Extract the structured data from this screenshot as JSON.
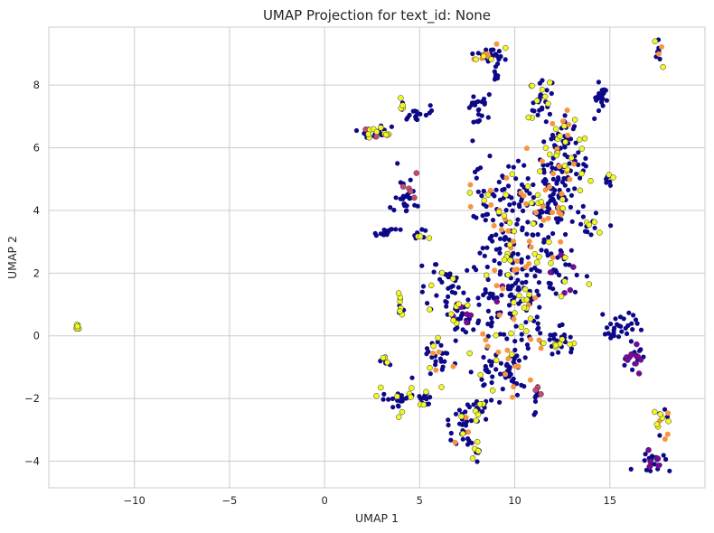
{
  "chart_data": {
    "type": "scatter",
    "title": "UMAP Projection for text_id: None",
    "xlabel": "UMAP 1",
    "ylabel": "UMAP 2",
    "xlim": [
      -14.5,
      20
    ],
    "ylim": [
      -4.85,
      9.85
    ],
    "xticks": [
      -10,
      -5,
      0,
      5,
      10,
      15
    ],
    "yticks": [
      -4,
      -2,
      0,
      2,
      4,
      6,
      8
    ],
    "grid": true,
    "legend": "none",
    "colors": {
      "navy": "#0d0887",
      "purple": "#7e03a8",
      "magenta": "#cc4778",
      "orange": "#f89540",
      "yellow": "#f0f921"
    },
    "clusters": [
      {
        "x": -13,
        "y": 0.28,
        "sx": 0.05,
        "sy": 0.04,
        "n": 6,
        "colors": {
          "yellow": 1
        }
      },
      {
        "x": 8.6,
        "y": 8.95,
        "sx": 0.45,
        "sy": 0.12,
        "n": 30,
        "colors": {
          "navy": 0.7,
          "orange": 0.15,
          "yellow": 0.15
        }
      },
      {
        "x": 9.1,
        "y": 8.6,
        "sx": 0.2,
        "sy": 0.3,
        "n": 10,
        "colors": {
          "navy": 1
        }
      },
      {
        "x": 17.6,
        "y": 9.0,
        "sx": 0.12,
        "sy": 0.2,
        "n": 12,
        "colors": {
          "navy": 0.5,
          "orange": 0.3,
          "yellow": 0.2
        }
      },
      {
        "x": 11.3,
        "y": 7.6,
        "sx": 0.3,
        "sy": 0.3,
        "n": 30,
        "colors": {
          "navy": 0.5,
          "yellow": 0.5
        }
      },
      {
        "x": 14.6,
        "y": 7.7,
        "sx": 0.2,
        "sy": 0.25,
        "n": 18,
        "colors": {
          "navy": 1
        }
      },
      {
        "x": 8.0,
        "y": 7.2,
        "sx": 0.35,
        "sy": 0.3,
        "n": 22,
        "colors": {
          "navy": 1
        }
      },
      {
        "x": 5.0,
        "y": 7.05,
        "sx": 0.4,
        "sy": 0.15,
        "n": 14,
        "colors": {
          "navy": 1
        }
      },
      {
        "x": 2.8,
        "y": 6.5,
        "sx": 0.45,
        "sy": 0.12,
        "n": 30,
        "colors": {
          "navy": 0.6,
          "magenta": 0.2,
          "yellow": 0.2
        }
      },
      {
        "x": 4.0,
        "y": 7.2,
        "sx": 0.2,
        "sy": 0.2,
        "n": 8,
        "colors": {
          "navy": 0.6,
          "yellow": 0.4
        }
      },
      {
        "x": 12.5,
        "y": 5.5,
        "sx": 0.6,
        "sy": 0.7,
        "n": 90,
        "colors": {
          "navy": 0.7,
          "yellow": 0.2,
          "orange": 0.1
        }
      },
      {
        "x": 12.7,
        "y": 6.5,
        "sx": 0.3,
        "sy": 0.3,
        "n": 15,
        "colors": {
          "navy": 0.6,
          "orange": 0.2,
          "yellow": 0.2
        }
      },
      {
        "x": 15.0,
        "y": 5.0,
        "sx": 0.15,
        "sy": 0.15,
        "n": 8,
        "colors": {
          "navy": 0.6,
          "yellow": 0.4
        }
      },
      {
        "x": 11.8,
        "y": 4.3,
        "sx": 1.0,
        "sy": 0.7,
        "n": 95,
        "colors": {
          "navy": 0.8,
          "yellow": 0.1,
          "orange": 0.1
        }
      },
      {
        "x": 9.5,
        "y": 3.8,
        "sx": 1.0,
        "sy": 0.8,
        "n": 110,
        "colors": {
          "navy": 0.8,
          "yellow": 0.1,
          "orange": 0.1
        }
      },
      {
        "x": 4.2,
        "y": 4.5,
        "sx": 0.25,
        "sy": 0.35,
        "n": 30,
        "colors": {
          "navy": 0.85,
          "magenta": 0.15
        }
      },
      {
        "x": 3.3,
        "y": 3.3,
        "sx": 0.3,
        "sy": 0.1,
        "n": 14,
        "colors": {
          "navy": 1
        }
      },
      {
        "x": 5.1,
        "y": 3.15,
        "sx": 0.2,
        "sy": 0.12,
        "n": 10,
        "colors": {
          "navy": 0.6,
          "yellow": 0.4
        }
      },
      {
        "x": 14.1,
        "y": 3.5,
        "sx": 0.3,
        "sy": 0.25,
        "n": 12,
        "colors": {
          "navy": 0.7,
          "yellow": 0.3
        }
      },
      {
        "x": 10.2,
        "y": 1.6,
        "sx": 1.0,
        "sy": 0.8,
        "n": 130,
        "colors": {
          "navy": 0.72,
          "yellow": 0.12,
          "orange": 0.12,
          "purple": 0.04
        }
      },
      {
        "x": 12.6,
        "y": 2.0,
        "sx": 0.5,
        "sy": 0.5,
        "n": 30,
        "colors": {
          "navy": 0.7,
          "purple": 0.15,
          "yellow": 0.15
        }
      },
      {
        "x": 6.3,
        "y": 1.5,
        "sx": 0.7,
        "sy": 0.5,
        "n": 40,
        "colors": {
          "navy": 0.8,
          "yellow": 0.2
        }
      },
      {
        "x": 7.4,
        "y": 0.6,
        "sx": 0.5,
        "sy": 0.35,
        "n": 40,
        "colors": {
          "navy": 0.65,
          "purple": 0.15,
          "yellow": 0.2
        }
      },
      {
        "x": 4.0,
        "y": 0.9,
        "sx": 0.1,
        "sy": 0.25,
        "n": 14,
        "colors": {
          "navy": 0.5,
          "yellow": 0.5
        }
      },
      {
        "x": 12.2,
        "y": -0.1,
        "sx": 0.5,
        "sy": 0.3,
        "n": 30,
        "colors": {
          "navy": 0.8,
          "yellow": 0.2
        }
      },
      {
        "x": 10.0,
        "y": -0.3,
        "sx": 0.8,
        "sy": 0.5,
        "n": 40,
        "colors": {
          "navy": 0.75,
          "orange": 0.15,
          "yellow": 0.1
        }
      },
      {
        "x": 15.5,
        "y": 0.3,
        "sx": 0.5,
        "sy": 0.3,
        "n": 30,
        "colors": {
          "navy": 1
        }
      },
      {
        "x": 16.3,
        "y": -0.7,
        "sx": 0.25,
        "sy": 0.25,
        "n": 20,
        "colors": {
          "navy": 0.6,
          "purple": 0.4
        }
      },
      {
        "x": 6.1,
        "y": -0.8,
        "sx": 0.4,
        "sy": 0.3,
        "n": 30,
        "colors": {
          "navy": 0.7,
          "yellow": 0.2,
          "orange": 0.1
        }
      },
      {
        "x": 8.6,
        "y": -1.0,
        "sx": 0.4,
        "sy": 0.35,
        "n": 25,
        "colors": {
          "navy": 0.75,
          "yellow": 0.25
        }
      },
      {
        "x": 9.8,
        "y": -1.2,
        "sx": 0.3,
        "sy": 0.5,
        "n": 25,
        "colors": {
          "navy": 0.7,
          "yellow": 0.15,
          "orange": 0.15
        }
      },
      {
        "x": 3.2,
        "y": -0.8,
        "sx": 0.15,
        "sy": 0.1,
        "n": 8,
        "colors": {
          "navy": 0.5,
          "yellow": 0.5
        }
      },
      {
        "x": 11.2,
        "y": -2.0,
        "sx": 0.1,
        "sy": 0.3,
        "n": 12,
        "colors": {
          "navy": 0.75,
          "magenta": 0.25
        }
      },
      {
        "x": 4.0,
        "y": -2.0,
        "sx": 0.5,
        "sy": 0.2,
        "n": 25,
        "colors": {
          "navy": 0.75,
          "yellow": 0.25
        }
      },
      {
        "x": 5.3,
        "y": -2.0,
        "sx": 0.3,
        "sy": 0.2,
        "n": 15,
        "colors": {
          "navy": 0.65,
          "yellow": 0.35
        }
      },
      {
        "x": 7.3,
        "y": -2.8,
        "sx": 0.35,
        "sy": 0.4,
        "n": 30,
        "colors": {
          "navy": 0.7,
          "yellow": 0.2,
          "orange": 0.1
        }
      },
      {
        "x": 8.2,
        "y": -2.3,
        "sx": 0.4,
        "sy": 0.2,
        "n": 20,
        "colors": {
          "navy": 0.7,
          "yellow": 0.3
        }
      },
      {
        "x": 7.9,
        "y": -3.7,
        "sx": 0.2,
        "sy": 0.2,
        "n": 12,
        "colors": {
          "navy": 0.6,
          "yellow": 0.4
        }
      },
      {
        "x": 17.3,
        "y": -4.0,
        "sx": 0.35,
        "sy": 0.15,
        "n": 25,
        "colors": {
          "navy": 0.85,
          "purple": 0.15
        }
      },
      {
        "x": 17.8,
        "y": -2.8,
        "sx": 0.2,
        "sy": 0.25,
        "n": 14,
        "colors": {
          "navy": 0.3,
          "yellow": 0.5,
          "orange": 0.2
        }
      }
    ]
  }
}
